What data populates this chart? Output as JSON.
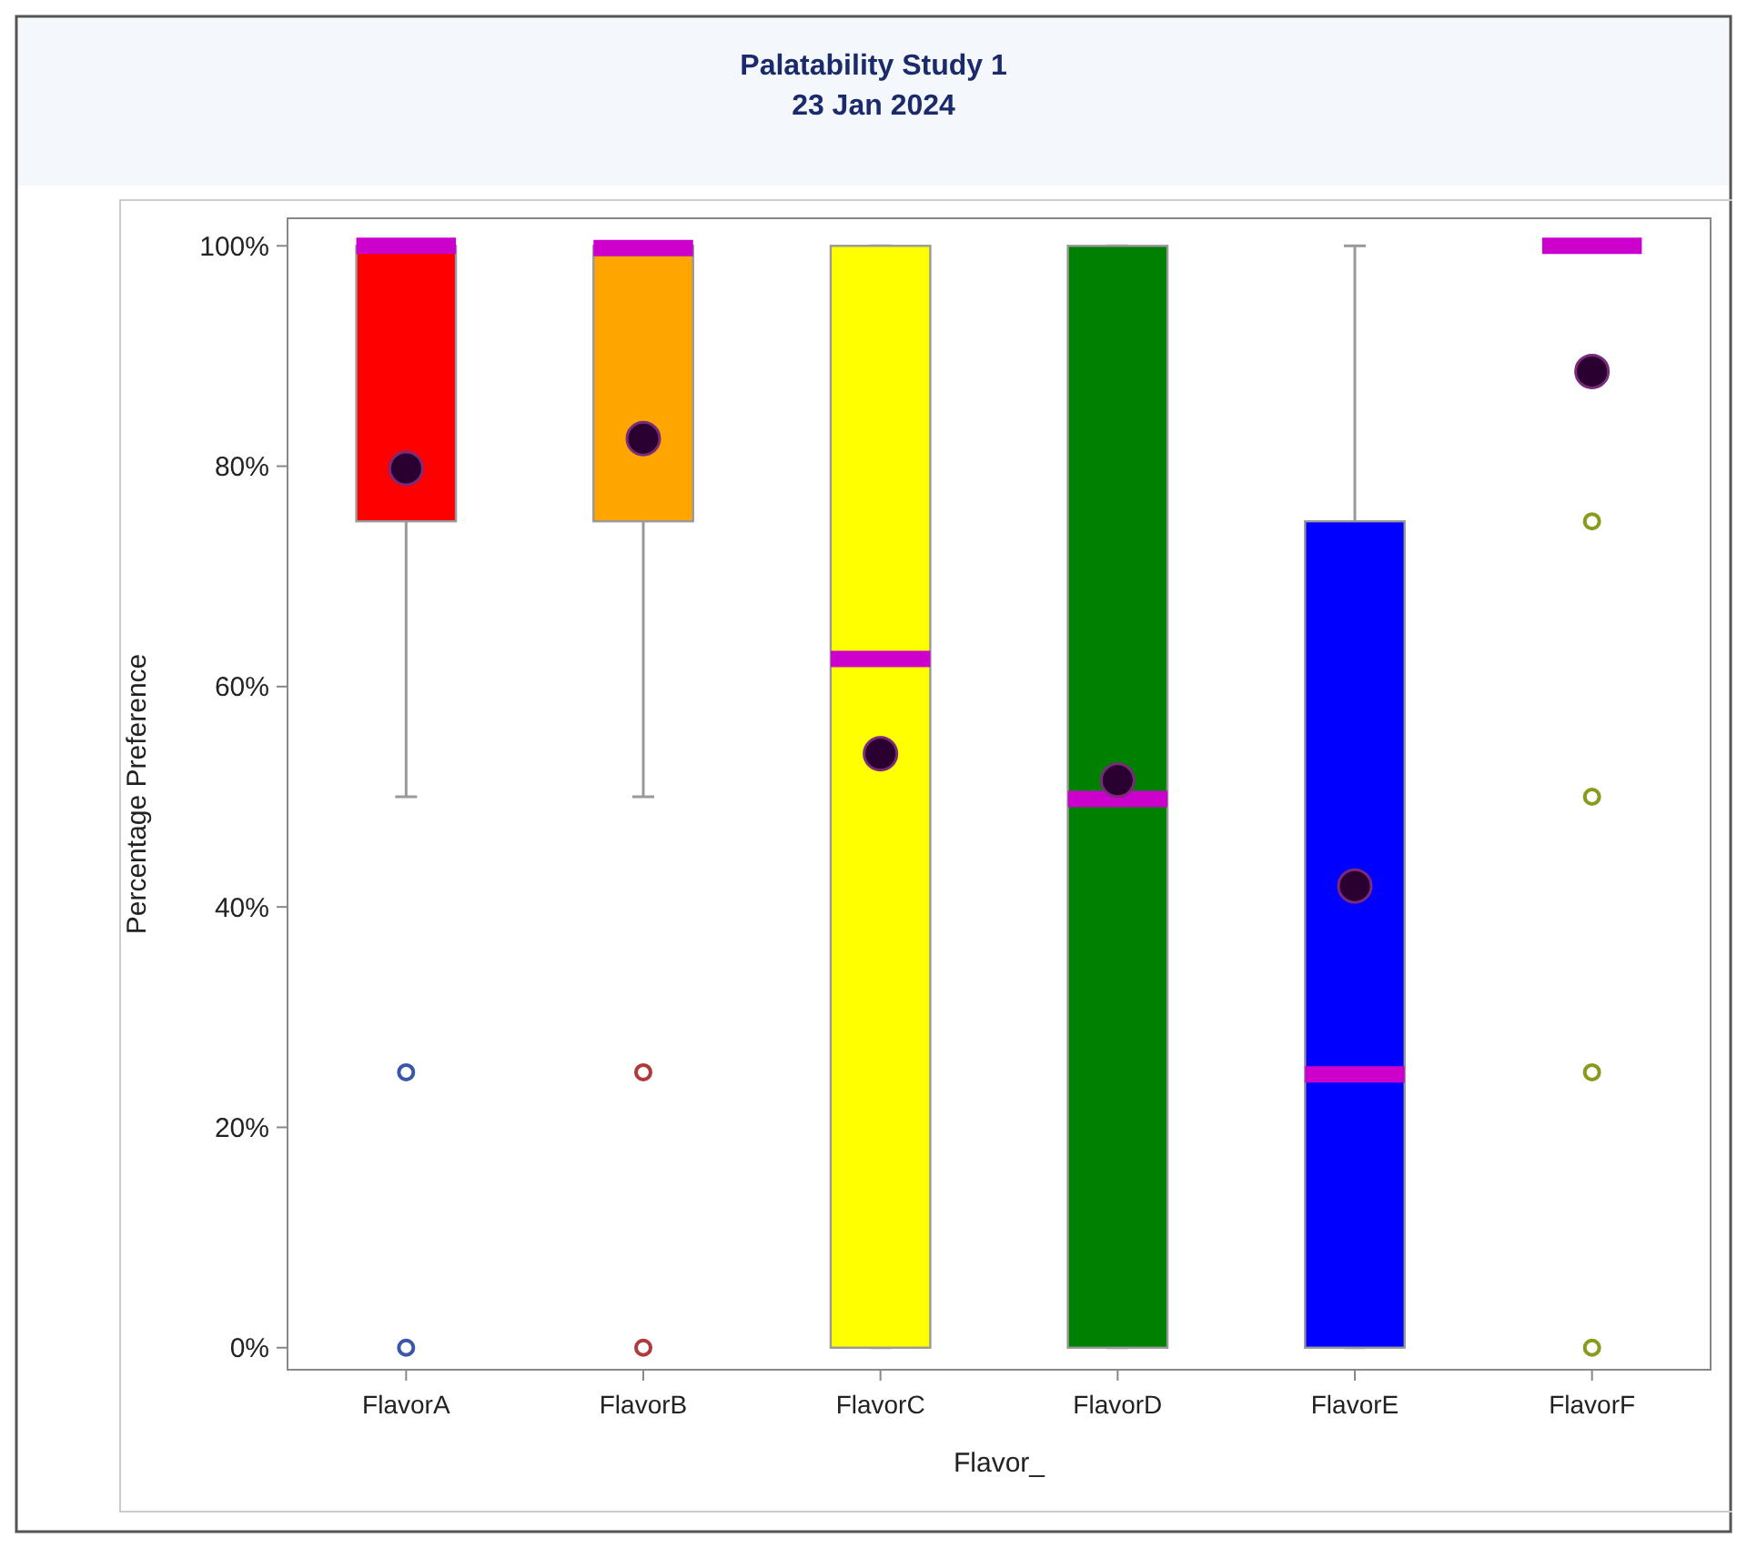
{
  "chart_data": {
    "type": "box",
    "title": "Palatability Study 1",
    "subtitle": "23 Jan 2024",
    "xlabel": "Flavor_",
    "ylabel": "Percentage Preference",
    "categories": [
      "FlavorA",
      "FlavorB",
      "FlavorC",
      "FlavorD",
      "FlavorE",
      "FlavorF"
    ],
    "colors": [
      "#ff0000",
      "#ffa500",
      "#ffff00",
      "#008000",
      "#0000ff",
      null
    ],
    "boxes": [
      {
        "low": 50,
        "q1": 75,
        "median": 100,
        "q3": 100,
        "high": 100,
        "mean": 79.8,
        "outliers": [
          25,
          0
        ]
      },
      {
        "low": 50,
        "q1": 75,
        "median": 99.8,
        "q3": 100,
        "high": 100,
        "mean": 82.5,
        "outliers": [
          25,
          0
        ]
      },
      {
        "low": 0,
        "q1": 0,
        "median": 62.5,
        "q3": 100,
        "high": 100,
        "mean": 53.9
      },
      {
        "low": 0,
        "q1": 0,
        "median": 49.8,
        "q3": 100,
        "high": 100,
        "mean": 51.5
      },
      {
        "low": 0,
        "q1": 0,
        "median": 24.8,
        "q3": 75,
        "high": 100,
        "mean": 41.9
      },
      {
        "low": 100,
        "q1": 100,
        "median": 100,
        "q3": 100,
        "high": 100,
        "mean": 88.6,
        "outliers": [
          75,
          50,
          25,
          0
        ]
      }
    ],
    "ylim": [
      -2,
      102.5
    ],
    "yticks": [
      {
        "value": 0,
        "label": "0%"
      },
      {
        "value": 20,
        "label": "20%"
      },
      {
        "value": 40,
        "label": "40%"
      },
      {
        "value": 60,
        "label": "60%"
      },
      {
        "value": 80,
        "label": "80%"
      },
      {
        "value": 100,
        "label": "100%"
      }
    ],
    "grid": false
  }
}
